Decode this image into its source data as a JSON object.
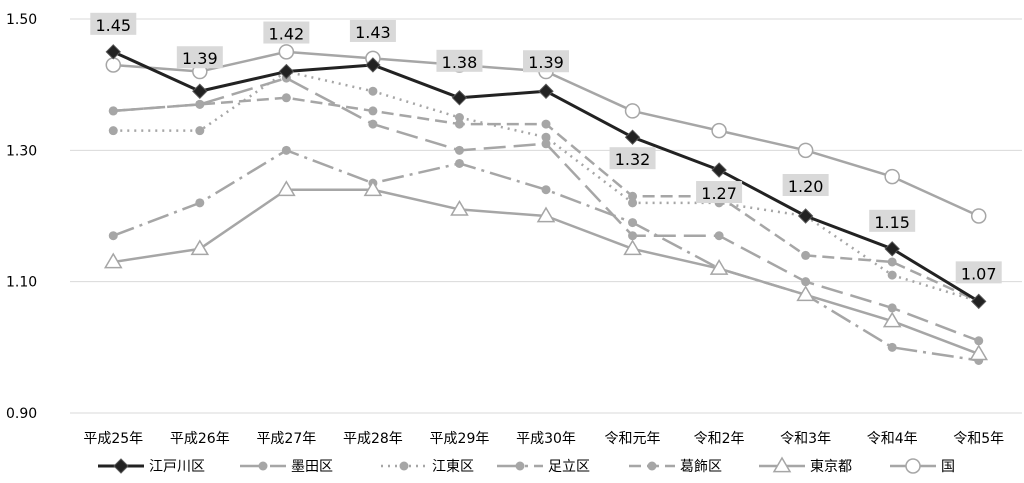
{
  "chart_data": {
    "type": "line",
    "title": "",
    "xlabel": "",
    "ylabel": "",
    "ylim": [
      0.9,
      1.5
    ],
    "yticks": [
      0.9,
      1.1,
      1.3,
      1.5
    ],
    "ytick_labels": [
      "0.90",
      "1.10",
      "1.30",
      "1.50"
    ],
    "grid": "horizontal",
    "legend_position": "bottom",
    "categories": [
      "平成25年",
      "平成26年",
      "平成27年",
      "平成28年",
      "平成29年",
      "平成30年",
      "令和元年",
      "令和2年",
      "令和3年",
      "令和4年",
      "令和5年"
    ],
    "series": [
      {
        "name": "江戸川区",
        "values": [
          1.45,
          1.39,
          1.42,
          1.43,
          1.38,
          1.39,
          1.32,
          1.27,
          1.2,
          1.15,
          1.07
        ],
        "labels": [
          "1.45",
          "1.39",
          "1.42",
          "1.43",
          "1.38",
          "1.39",
          "1.32",
          "1.27",
          "1.20",
          "1.15",
          "1.07"
        ],
        "color": "#222222",
        "dash": "",
        "width": 3,
        "marker": "diamond"
      },
      {
        "name": "墨田区",
        "values": [
          1.36,
          1.37,
          1.41,
          1.34,
          1.3,
          1.31,
          1.17,
          1.17,
          1.1,
          1.06,
          1.01
        ],
        "color": "#a6a6a6",
        "dash": "22 8",
        "width": 2.5,
        "marker": "circle-small"
      },
      {
        "name": "江東区",
        "values": [
          1.33,
          1.33,
          1.42,
          1.39,
          1.35,
          1.32,
          1.22,
          1.22,
          1.2,
          1.11,
          1.07
        ],
        "color": "#a6a6a6",
        "dash": "2 5",
        "width": 2.5,
        "marker": "circle-small"
      },
      {
        "name": "足立区",
        "values": [
          1.17,
          1.22,
          1.3,
          1.25,
          1.28,
          1.24,
          1.19,
          1.12,
          1.08,
          1.0,
          0.98
        ],
        "color": "#a6a6a6",
        "dash": "22 6 3 6",
        "width": 2.5,
        "marker": "circle-small"
      },
      {
        "name": "葛飾区",
        "values": [
          1.36,
          1.37,
          1.38,
          1.36,
          1.34,
          1.34,
          1.23,
          1.23,
          1.14,
          1.13,
          1.07
        ],
        "color": "#a6a6a6",
        "dash": "12 6",
        "width": 2.5,
        "marker": "circle-small"
      },
      {
        "name": "東京都",
        "values": [
          1.13,
          1.15,
          1.24,
          1.24,
          1.21,
          1.2,
          1.15,
          1.12,
          1.08,
          1.04,
          0.99
        ],
        "color": "#a6a6a6",
        "dash": "",
        "width": 2.5,
        "marker": "triangle"
      },
      {
        "name": "国",
        "values": [
          1.43,
          1.42,
          1.45,
          1.44,
          1.43,
          1.42,
          1.36,
          1.33,
          1.3,
          1.26,
          1.2
        ],
        "color": "#a6a6a6",
        "dash": "",
        "width": 2.5,
        "marker": "circle-open"
      }
    ]
  }
}
